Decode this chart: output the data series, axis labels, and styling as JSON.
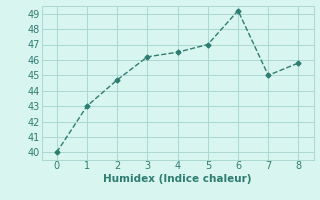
{
  "x": [
    0,
    1,
    2,
    3,
    4,
    5,
    6,
    7,
    8
  ],
  "y": [
    40,
    43,
    44.7,
    46.2,
    46.5,
    47.0,
    49.2,
    45.0,
    45.8
  ],
  "line_color": "#2e7d70",
  "marker": "D",
  "marker_size": 2.5,
  "line_style": "--",
  "line_width": 1.0,
  "background_color": "#d8f5f0",
  "grid_color": "#aad8d3",
  "xlabel": "Humidex (Indice chaleur)",
  "xlim": [
    -0.5,
    8.5
  ],
  "ylim": [
    39.5,
    49.5
  ],
  "xticks": [
    0,
    1,
    2,
    3,
    4,
    5,
    6,
    7,
    8
  ],
  "yticks": [
    40,
    41,
    42,
    43,
    44,
    45,
    46,
    47,
    48,
    49
  ],
  "font_color": "#2e7d70",
  "tick_fontsize": 7,
  "xlabel_fontsize": 7.5
}
